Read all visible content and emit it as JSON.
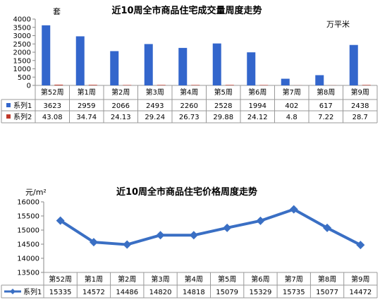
{
  "chart_data": [
    {
      "type": "bar",
      "title": "近10周全市商品住宅成交量周度走势",
      "left_unit": "套",
      "right_unit": "万平米",
      "categories": [
        "第52周",
        "第1周",
        "第2周",
        "第3周",
        "第4周",
        "第5周",
        "第6周",
        "第7周",
        "第8周",
        "第9周"
      ],
      "ylim": [
        0,
        4000
      ],
      "yticks": [
        0,
        500,
        1000,
        1500,
        2000,
        2500,
        3000,
        3500,
        4000
      ],
      "grid": false,
      "legend": "table",
      "series": [
        {
          "name": "系列1",
          "color": "#3366cc",
          "values": [
            3623,
            2959,
            2066,
            2493,
            2260,
            2528,
            1994,
            402,
            617,
            2438
          ]
        },
        {
          "name": "系列2",
          "color": "#c0392b",
          "values": [
            43.08,
            34.74,
            24.13,
            29.24,
            26.73,
            29.88,
            24.12,
            4.8,
            7.22,
            28.7
          ]
        }
      ]
    },
    {
      "type": "line",
      "title": "近10周全市商品住宅价格周度走势",
      "unit": "元/m²",
      "categories": [
        "第52周",
        "第1周",
        "第2周",
        "第3周",
        "第4周",
        "第5周",
        "第6周",
        "第7周",
        "第8周",
        "第9周"
      ],
      "ylim": [
        13500,
        16000
      ],
      "yticks": [
        13500,
        14000,
        14500,
        15000,
        15500,
        16000
      ],
      "grid": false,
      "legend": "table",
      "series": [
        {
          "name": "系列1",
          "color": "#3a6fc4",
          "values": [
            15335,
            14572,
            14486,
            14820,
            14818,
            15079,
            15329,
            15735,
            15077,
            14472
          ]
        }
      ]
    }
  ]
}
